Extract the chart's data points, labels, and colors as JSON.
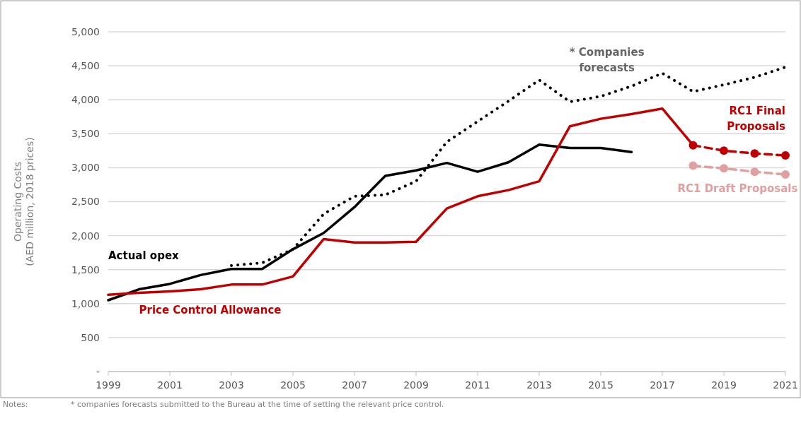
{
  "chart_data": {
    "type": "line",
    "ylabel": "Operating Costs (AED million, 2018 prices)",
    "xlim": [
      1999,
      2021
    ],
    "xticks": [
      1999,
      2001,
      2003,
      2005,
      2007,
      2009,
      2011,
      2013,
      2015,
      2017,
      2019,
      2021
    ],
    "ylim": [
      0,
      5000
    ],
    "yticks": [
      {
        "value": 0,
        "label": "-"
      },
      {
        "value": 500,
        "label": "500"
      },
      {
        "value": 1000,
        "label": "1,000"
      },
      {
        "value": 1500,
        "label": "1,500"
      },
      {
        "value": 2000,
        "label": "2,000"
      },
      {
        "value": 2500,
        "label": "2,500"
      },
      {
        "value": 3000,
        "label": "3,000"
      },
      {
        "value": 3500,
        "label": "3,500"
      },
      {
        "value": 4000,
        "label": "4,000"
      },
      {
        "value": 4500,
        "label": "4,500"
      },
      {
        "value": 5000,
        "label": "5,000"
      }
    ],
    "grid": "y",
    "legend": false,
    "series": [
      {
        "name": "Actual opex",
        "color": "#000000",
        "line_style": "solid",
        "marker": "none",
        "x": [
          1999,
          2000,
          2001,
          2002,
          2003,
          2004,
          2005,
          2006,
          2007,
          2008,
          2009,
          2010,
          2011,
          2012,
          2013,
          2014,
          2015,
          2016
        ],
        "values": [
          1050,
          1210,
          1290,
          1420,
          1510,
          1510,
          1800,
          2040,
          2420,
          2880,
          2960,
          3070,
          2940,
          3080,
          3340,
          3290,
          3290,
          3230
        ]
      },
      {
        "name": "* Companies forecasts",
        "color": "#000000",
        "line_style": "dotted",
        "marker": "none",
        "x": [
          2003,
          2004,
          2005,
          2006,
          2007,
          2008,
          2009,
          2010,
          2011,
          2012,
          2013,
          2014,
          2015,
          2016,
          2017,
          2018,
          2019,
          2020,
          2021
        ],
        "values": [
          1560,
          1600,
          1800,
          2320,
          2580,
          2600,
          2800,
          3380,
          3680,
          3980,
          4290,
          3970,
          4050,
          4200,
          4390,
          4120,
          4220,
          4330,
          4480
        ]
      },
      {
        "name": "Price Control Allowance",
        "color": "#c00000",
        "line_style": "solid",
        "marker": "none",
        "x": [
          1999,
          2000,
          2001,
          2002,
          2003,
          2004,
          2005,
          2006,
          2007,
          2008,
          2009,
          2010,
          2011,
          2012,
          2013,
          2014,
          2015,
          2016,
          2017,
          2018
        ],
        "values": [
          1130,
          1160,
          1180,
          1210,
          1280,
          1280,
          1400,
          1950,
          1900,
          1900,
          1910,
          2400,
          2580,
          2670,
          2800,
          3610,
          3720,
          3790,
          3870,
          3330
        ]
      },
      {
        "name": "RC1 Final Proposals",
        "color": "#c00000",
        "line_style": "dashed",
        "marker": "circle",
        "x": [
          2018,
          2019,
          2020,
          2021
        ],
        "values": [
          3330,
          3250,
          3210,
          3180
        ]
      },
      {
        "name": "RC1 Draft Proposals",
        "color": "#e0a0a0",
        "line_style": "dashed",
        "marker": "circle",
        "x": [
          2018,
          2019,
          2020,
          2021
        ],
        "values": [
          3030,
          2990,
          2940,
          2900
        ]
      }
    ],
    "annotations": [
      "Notes:",
      "* companies forecasts submitted to the Bureau at the time of setting the relevant price control."
    ]
  }
}
